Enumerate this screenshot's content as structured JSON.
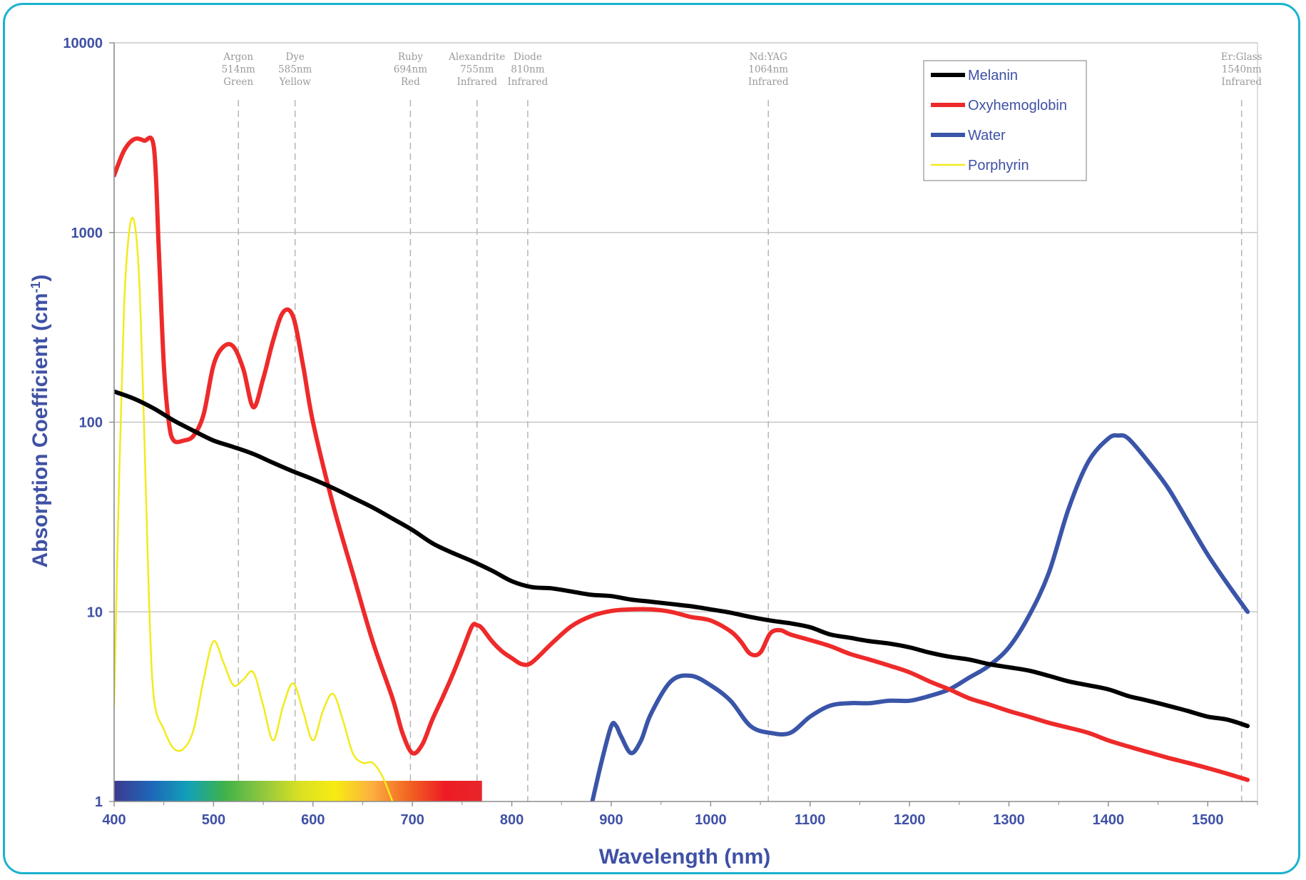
{
  "chart_data": {
    "type": "line",
    "title": "",
    "xlabel": "Wavelength (nm)",
    "ylabel": "Absorption Coefficient (cm⁻¹)",
    "ylabel_main": "Absorption Coefficient (cm",
    "ylabel_sup": "-1",
    "ylabel_close": ")",
    "xlim": [
      400,
      1550
    ],
    "ylim": [
      1,
      10000
    ],
    "yscale": "log",
    "grid": "horizontal",
    "legend_position": "top-right",
    "x_ticks": [
      "400",
      "500",
      "600",
      "700",
      "800",
      "900",
      "1000",
      "1100",
      "1200",
      "1300",
      "1400",
      "1500"
    ],
    "y_ticks": [
      "1",
      "10",
      "100",
      "1000",
      "10000"
    ],
    "lasers": [
      {
        "name": "Argon",
        "wavelength": 514,
        "line1": "Argon",
        "line2": "514nm",
        "line3": "Green",
        "position": 525
      },
      {
        "name": "Dye",
        "wavelength": 585,
        "line1": "Dye",
        "line2": "585nm",
        "line3": "Yellow",
        "position": 582
      },
      {
        "name": "Ruby",
        "wavelength": 694,
        "line1": "Ruby",
        "line2": "694nm",
        "line3": "Red",
        "position": 698
      },
      {
        "name": "Alexandrite",
        "wavelength": 755,
        "line1": "Alexandrite",
        "line2": "755nm",
        "line3": "Infrared",
        "position": 765
      },
      {
        "name": "Diode",
        "wavelength": 810,
        "line1": "Diode",
        "line2": "810nm",
        "line3": "Infrared",
        "position": 816
      },
      {
        "name": "Nd:YAG",
        "wavelength": 1064,
        "line1": "Nd:YAG",
        "line2": "1064nm",
        "line3": "Infrared",
        "position": 1058
      },
      {
        "name": "Er:Glass",
        "wavelength": 1540,
        "line1": "Er:Glass",
        "line2": "1540nm",
        "line3": "Infrared",
        "position": 1534
      }
    ],
    "spectrum_band": {
      "x_start": 400,
      "x_end": 770,
      "colors": [
        "#3d3a8f",
        "#1e66b8",
        "#12a0b8",
        "#3fb24a",
        "#8cc63f",
        "#d7df23",
        "#f7ec13",
        "#fbb040",
        "#f26522",
        "#ed1c24",
        "#e8262a"
      ]
    },
    "series": [
      {
        "name": "Melanin",
        "color": "#000000",
        "width": 6,
        "x": [
          400,
          420,
          440,
          460,
          480,
          500,
          520,
          540,
          560,
          580,
          600,
          620,
          640,
          660,
          680,
          700,
          720,
          740,
          760,
          780,
          800,
          820,
          840,
          860,
          880,
          900,
          920,
          940,
          960,
          980,
          1000,
          1020,
          1040,
          1060,
          1080,
          1100,
          1120,
          1140,
          1160,
          1180,
          1200,
          1220,
          1240,
          1260,
          1280,
          1300,
          1320,
          1340,
          1360,
          1380,
          1400,
          1420,
          1440,
          1460,
          1480,
          1500,
          1520,
          1540
        ],
        "y": [
          145,
          133,
          118,
          102,
          90,
          80,
          74,
          68,
          61,
          55,
          50,
          45,
          40,
          35.5,
          31,
          27,
          23,
          20.5,
          18.5,
          16.5,
          14.5,
          13.5,
          13.3,
          12.8,
          12.3,
          12.1,
          11.6,
          11.3,
          11.0,
          10.7,
          10.3,
          9.9,
          9.4,
          9.0,
          8.7,
          8.3,
          7.6,
          7.3,
          7.0,
          6.8,
          6.5,
          6.1,
          5.8,
          5.6,
          5.3,
          5.1,
          4.9,
          4.6,
          4.3,
          4.1,
          3.9,
          3.6,
          3.4,
          3.2,
          3.0,
          2.8,
          2.7,
          2.5
        ]
      },
      {
        "name": "Oxyhemoglobin",
        "color": "#ee2a2a",
        "width": 6,
        "x": [
          400,
          410,
          420,
          430,
          440,
          445,
          450,
          455,
          460,
          470,
          480,
          490,
          500,
          510,
          520,
          530,
          540,
          550,
          560,
          570,
          580,
          590,
          600,
          620,
          640,
          660,
          680,
          690,
          700,
          710,
          720,
          730,
          740,
          750,
          760,
          765,
          770,
          780,
          790,
          800,
          810,
          820,
          840,
          860,
          880,
          900,
          920,
          940,
          960,
          980,
          1000,
          1020,
          1030,
          1040,
          1050,
          1060,
          1070,
          1080,
          1100,
          1120,
          1140,
          1160,
          1180,
          1200,
          1220,
          1240,
          1260,
          1280,
          1300,
          1320,
          1340,
          1360,
          1380,
          1400,
          1420,
          1440,
          1460,
          1480,
          1500,
          1520,
          1540
        ],
        "y": [
          2000,
          2700,
          3100,
          3050,
          2800,
          800,
          200,
          100,
          80,
          80,
          85,
          110,
          200,
          250,
          250,
          190,
          120,
          170,
          270,
          380,
          360,
          200,
          100,
          37,
          16,
          7,
          3.5,
          2.3,
          1.8,
          2,
          2.7,
          3.5,
          4.6,
          6.2,
          8.4,
          8.5,
          8.2,
          7,
          6.2,
          5.7,
          5.3,
          5.4,
          6.8,
          8.4,
          9.5,
          10.1,
          10.3,
          10.3,
          10,
          9.4,
          9,
          7.9,
          7,
          6.0,
          6.1,
          7.7,
          8.0,
          7.6,
          7.1,
          6.6,
          6.0,
          5.6,
          5.2,
          4.8,
          4.3,
          3.9,
          3.5,
          3.25,
          3.0,
          2.8,
          2.6,
          2.45,
          2.3,
          2.1,
          1.95,
          1.82,
          1.7,
          1.6,
          1.5,
          1.4,
          1.3
        ]
      },
      {
        "name": "Water",
        "color": "#3a55a8",
        "width": 6,
        "x": [
          880,
          890,
          900,
          905,
          910,
          920,
          930,
          940,
          960,
          980,
          1000,
          1020,
          1040,
          1060,
          1080,
          1100,
          1120,
          1140,
          1160,
          1180,
          1200,
          1220,
          1240,
          1260,
          1280,
          1300,
          1320,
          1340,
          1360,
          1380,
          1400,
          1410,
          1420,
          1440,
          1460,
          1480,
          1500,
          1520,
          1540
        ],
        "y": [
          0.95,
          1.6,
          2.5,
          2.5,
          2.2,
          1.8,
          2.1,
          2.9,
          4.3,
          4.6,
          4.1,
          3.4,
          2.5,
          2.3,
          2.3,
          2.8,
          3.2,
          3.3,
          3.3,
          3.4,
          3.4,
          3.6,
          3.9,
          4.5,
          5.2,
          6.5,
          9.5,
          16,
          35,
          62,
          82,
          85,
          82,
          62,
          45,
          30,
          20,
          14,
          10
        ]
      },
      {
        "name": "Porphyrin",
        "color": "#f2eb1c",
        "width": 2.5,
        "x": [
          400,
          405,
          410,
          415,
          420,
          425,
          430,
          435,
          440,
          450,
          460,
          470,
          480,
          490,
          500,
          510,
          520,
          530,
          540,
          550,
          560,
          570,
          580,
          590,
          600,
          610,
          620,
          630,
          640,
          650,
          660,
          670,
          680
        ],
        "y": [
          3.2,
          50,
          400,
          1000,
          1150,
          600,
          100,
          12,
          3.5,
          2.4,
          1.9,
          1.9,
          2.4,
          4.4,
          7.0,
          5.4,
          4.1,
          4.4,
          4.8,
          3.2,
          2.1,
          3.2,
          4.2,
          3.0,
          2.1,
          3.0,
          3.7,
          2.7,
          1.8,
          1.6,
          1.6,
          1.35,
          1.0
        ]
      }
    ]
  }
}
